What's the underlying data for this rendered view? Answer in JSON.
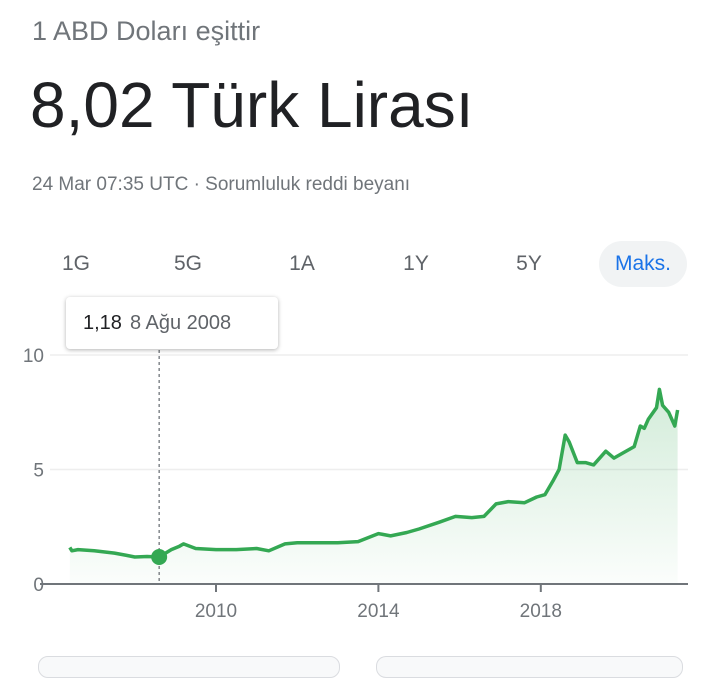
{
  "header": {
    "subtitle": "1 ABD Doları eşittir",
    "value": "8,02 Türk Lirası",
    "meta": "24 Mar 07:35 UTC · Sorumluluk reddi beyanı"
  },
  "tabs": [
    {
      "label": "1G"
    },
    {
      "label": "5G"
    },
    {
      "label": "1A"
    },
    {
      "label": "1Y"
    },
    {
      "label": "5Y"
    },
    {
      "label": "Maks.",
      "active": true
    }
  ],
  "tooltip": {
    "value": "1,18",
    "date": "8 Ağu 2008"
  },
  "colors": {
    "line": "#34a853",
    "accent": "#1a73e8"
  },
  "chart_data": {
    "type": "area",
    "ylim": [
      0,
      10
    ],
    "xlim": [
      2005.7,
      2021.6
    ],
    "yticks": [
      {
        "value": 0,
        "label": "0"
      },
      {
        "value": 5,
        "label": "5"
      },
      {
        "value": 10,
        "label": "10"
      }
    ],
    "xticks": [
      {
        "value": 2010,
        "label": "2010"
      },
      {
        "value": 2014,
        "label": "2014"
      },
      {
        "value": 2018,
        "label": "2018"
      }
    ],
    "grid": true,
    "highlight": {
      "x": 2008.6,
      "y": 1.18
    },
    "series": [
      {
        "values": [
          [
            2006.4,
            1.6
          ],
          [
            2006.45,
            1.45
          ],
          [
            2006.6,
            1.5
          ],
          [
            2007.0,
            1.45
          ],
          [
            2007.5,
            1.35
          ],
          [
            2007.8,
            1.25
          ],
          [
            2008.0,
            1.18
          ],
          [
            2008.3,
            1.2
          ],
          [
            2008.6,
            1.18
          ],
          [
            2008.9,
            1.5
          ],
          [
            2009.1,
            1.65
          ],
          [
            2009.2,
            1.75
          ],
          [
            2009.5,
            1.55
          ],
          [
            2010.0,
            1.5
          ],
          [
            2010.5,
            1.5
          ],
          [
            2011.0,
            1.55
          ],
          [
            2011.3,
            1.45
          ],
          [
            2011.7,
            1.75
          ],
          [
            2012.0,
            1.8
          ],
          [
            2012.5,
            1.8
          ],
          [
            2013.0,
            1.8
          ],
          [
            2013.5,
            1.85
          ],
          [
            2014.0,
            2.2
          ],
          [
            2014.3,
            2.1
          ],
          [
            2014.7,
            2.25
          ],
          [
            2015.0,
            2.4
          ],
          [
            2015.5,
            2.7
          ],
          [
            2015.9,
            2.95
          ],
          [
            2016.3,
            2.9
          ],
          [
            2016.6,
            2.95
          ],
          [
            2016.9,
            3.5
          ],
          [
            2017.2,
            3.6
          ],
          [
            2017.6,
            3.55
          ],
          [
            2017.9,
            3.8
          ],
          [
            2018.1,
            3.9
          ],
          [
            2018.3,
            4.5
          ],
          [
            2018.45,
            5.0
          ],
          [
            2018.6,
            6.5
          ],
          [
            2018.7,
            6.2
          ],
          [
            2018.9,
            5.3
          ],
          [
            2019.1,
            5.3
          ],
          [
            2019.3,
            5.2
          ],
          [
            2019.6,
            5.8
          ],
          [
            2019.8,
            5.5
          ],
          [
            2020.0,
            5.7
          ],
          [
            2020.3,
            6.0
          ],
          [
            2020.45,
            6.9
          ],
          [
            2020.55,
            6.8
          ],
          [
            2020.65,
            7.2
          ],
          [
            2020.85,
            7.7
          ],
          [
            2020.92,
            8.5
          ],
          [
            2021.0,
            7.8
          ],
          [
            2021.15,
            7.5
          ],
          [
            2021.3,
            6.9
          ],
          [
            2021.37,
            7.6
          ]
        ]
      }
    ]
  }
}
